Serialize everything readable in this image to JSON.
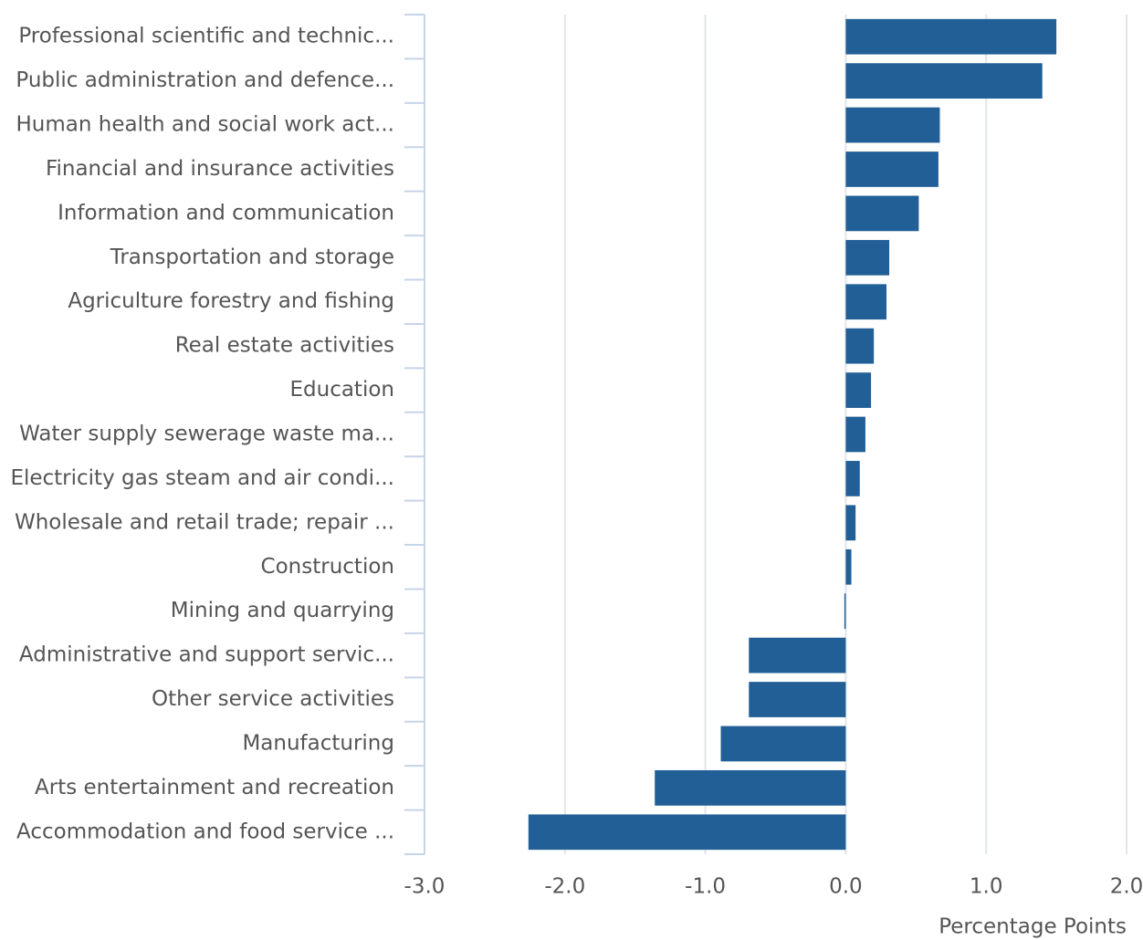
{
  "chart_data": {
    "type": "bar",
    "orientation": "horizontal",
    "categories": [
      "Professional scientific and technic...",
      "Public administration and defence...",
      "Human health and social work act...",
      "Financial and insurance activities",
      "Information and communication",
      "Transportation and storage",
      "Agriculture forestry and fishing",
      "Real estate activities",
      "Education",
      "Water supply sewerage waste ma...",
      "Electricity gas steam and air condi...",
      "Wholesale and retail trade; repair ...",
      "Construction",
      "Mining and quarrying",
      "Administrative and support servic...",
      "Other service activities",
      "Manufacturing",
      "Arts entertainment and recreation",
      "Accommodation and food service ..."
    ],
    "values": [
      1.5,
      1.4,
      0.67,
      0.66,
      0.52,
      0.31,
      0.29,
      0.2,
      0.18,
      0.14,
      0.1,
      0.07,
      0.04,
      -0.01,
      -0.69,
      -0.69,
      -0.89,
      -1.36,
      -2.26
    ],
    "color": "#215f96",
    "xlabel": "Percentage Points",
    "xlim": [
      -3,
      2
    ],
    "xticks": [
      {
        "value": -3,
        "label": "-3.0"
      },
      {
        "value": -2,
        "label": "-2.0"
      },
      {
        "value": -1,
        "label": "-1.0"
      },
      {
        "value": 0,
        "label": "0.0"
      },
      {
        "value": 1,
        "label": "1.0"
      },
      {
        "value": 2,
        "label": "2.0"
      }
    ],
    "grid": true
  }
}
